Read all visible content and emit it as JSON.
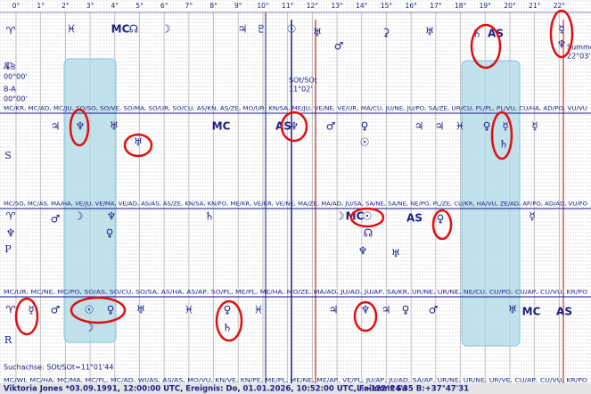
{
  "ruler": [
    "0°",
    "1°",
    "2°",
    "3°",
    "4°",
    "5°",
    "6°",
    "7°",
    "8°",
    "9°",
    "10°",
    "11°",
    "12°",
    "13°",
    "14°",
    "15°",
    "16°",
    "17°",
    "18°",
    "19°",
    "20°",
    "21°",
    "22°"
  ],
  "rows": [
    {
      "label": "T",
      "glyphs": [
        "♈",
        "♓",
        "MC",
        "☊",
        "☽",
        "♃",
        "♇",
        "☉",
        "♅",
        "♂",
        "⚳",
        "♅",
        "♄",
        "AS",
        "☿",
        "♆"
      ],
      "abbrev": "MC/KR, MC/AD, MC/JU, SO/SO, SO/VE, SO/MA, SO/UR, SO/CU, AS/KN, AS/ZE, MO/UR, KN/SA, ME/JU, VE/NE, VE/UR, MA/CU, JU/NE, JU/PO, SA/ZE, UR/CU, PL/PL, PL/VU, CU/HA, AD/PO, VU/VU"
    },
    {
      "label": "S",
      "glyphs": [
        "♃",
        "♆",
        "♅",
        "♅",
        "MC",
        "AS",
        "♆",
        "♂",
        "♀",
        "☉",
        "♃",
        "♃",
        "♓",
        "♀",
        "☿",
        "♄",
        "☿"
      ],
      "abbrev": "MC/SO, MC/AS, MA/HA, VE/JU, VE/MA, VE/AD, AS/AS, AS/ZE, KN/SA, KN/PO, ME/KR, VE/KR, VE/NE, MA/ZE, MA/AD, JU/SA, SA/NE, SA/NE, NE/PO, PL/ZE, CU/KR, HA/VU, ZE/AD, AP/PO, AD/AD, VU/PO"
    },
    {
      "label": "P",
      "glyphs": [
        "♈",
        "♆",
        "♂",
        "☽",
        "♆",
        "♀",
        "♄",
        "☽",
        "MC",
        "☉",
        "AS",
        "♀",
        "☊",
        "♆",
        "♅",
        "☿"
      ],
      "abbrev": "MC/UR, MC/NE, MC/PO, SO/AS, SO/CU, SO/SA, AS/HA, AS/AP, SO/PL, ME/PL, ME/HA, MO/ZE, MA/AD, JU/AD, JU/AP, SA/KR, UR/NE, UR/NE, NE/CU, CU/PO, CU/AP, CU/VU, KR/PO"
    },
    {
      "label": "R",
      "glyphs": [
        "♈",
        "☿",
        "♂",
        "☉",
        "♀",
        "☽",
        "♅",
        "♓",
        "♀",
        "♄",
        "♓",
        "♃",
        "♆",
        "♃",
        "♀",
        "♂",
        "♅",
        "MC",
        "AS"
      ],
      "abbrev": "MC/WI, MC/HA, MC/MA, MC/PL, MC/AD, WI/AS, AS/AS, MO/VU, KN/VE, KN/PE, ME/PL, ME/NE, ME/AP, VE/PL, JU/AP, JU/AD, SA/AP, UR/NE, UR/NE, UR/VE, CU/AP, CU/VU, KR/PO"
    }
  ],
  "notes": {
    "ab": "A-B",
    "ab_value": "00°00'",
    "ba": "B-A",
    "ba_value": "00°00'",
    "axis": "SOt/SOt",
    "axis_value": "11°02'",
    "sum": "Summe",
    "sum_value": "22°03'",
    "search": "Suchachse: SOt/SOt=11°01'44"
  },
  "footer": {
    "info": "Viktoria Jones  *03.09.1991, 12:00:00 UTC, Ereignis: Do, 01.01.2026, 10:52:00 UTC, Faimont Sa",
    "coords": "L.:-122°24'35 B:+37°47'31"
  }
}
